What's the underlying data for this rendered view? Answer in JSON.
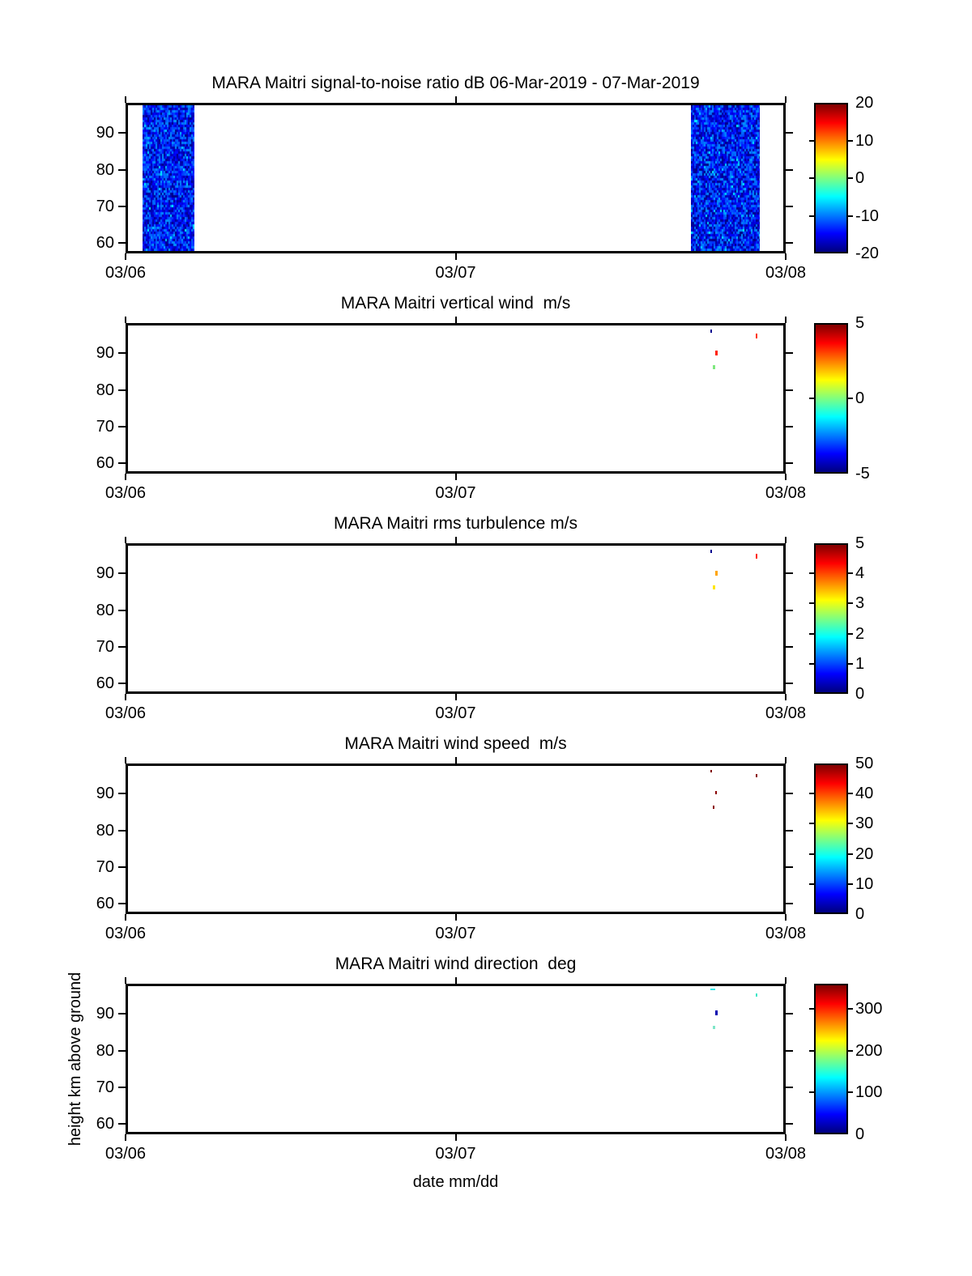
{
  "figure": {
    "background": "#ffffff",
    "text_color": "#000000",
    "colormap": "jet",
    "colormap_stops_bottom_to_top": [
      "#00007f",
      "#0000ff",
      "#00ffff",
      "#7fff7f",
      "#ffff00",
      "#ff0000",
      "#7f0000"
    ],
    "colormap_stop_fracs": [
      0,
      0.125,
      0.375,
      0.5,
      0.625,
      0.875,
      1
    ]
  },
  "axes": {
    "x_label": "date mm/dd",
    "y_label": "height km above ground",
    "x_tick_labels": [
      "03/06",
      "03/07",
      "03/08"
    ],
    "y_tick_labels": [
      "90",
      "80",
      "70",
      "60"
    ]
  },
  "chart_data": [
    {
      "type": "heatmap",
      "title": "MARA Maitri signal-to-noise ratio dB 06-Mar-2019 - 07-Mar-2019",
      "quantity": "signal-to-noise ratio",
      "units": "dB",
      "x_ticks": [
        "03/06",
        "03/07",
        "03/08"
      ],
      "y_ticks": [
        90,
        80,
        70,
        60
      ],
      "y_range_km": [
        57,
        98
      ],
      "colorbar": {
        "min": -20,
        "max": 20,
        "tick_values": [
          20,
          10,
          0,
          -10,
          -20
        ]
      },
      "noise_bands": [
        {
          "t0": 0.022,
          "t1": 0.101,
          "value_range_db": [
            -20,
            -8
          ],
          "desc": "blue noise block early 03/06"
        },
        {
          "t0": 0.859,
          "t1": 0.964,
          "value_range_db": [
            -20,
            -8
          ],
          "desc": "blue noise block late 03/07"
        }
      ],
      "specks": []
    },
    {
      "type": "heatmap",
      "title": "MARA Maitri vertical wind  m/s",
      "quantity": "vertical wind",
      "units": "m/s",
      "x_ticks": [
        "03/06",
        "03/07",
        "03/08"
      ],
      "y_ticks": [
        90,
        80,
        70,
        60
      ],
      "y_range_km": [
        57,
        98
      ],
      "colorbar": {
        "min": -5,
        "max": 5,
        "tick_values": [
          5,
          0,
          -5
        ]
      },
      "noise_bands": [],
      "specks": [
        {
          "x": 0.889,
          "y": 0.03,
          "w": 2,
          "h": 4,
          "color": "#00008f"
        },
        {
          "x": 0.958,
          "y": 0.058,
          "w": 2,
          "h": 6,
          "color": "#ff3300"
        },
        {
          "x": 0.896,
          "y": 0.17,
          "w": 3,
          "h": 6,
          "color": "#ff1f00"
        },
        {
          "x": 0.893,
          "y": 0.272,
          "w": 3,
          "h": 5,
          "color": "#7fe87f"
        }
      ]
    },
    {
      "type": "heatmap",
      "title": "MARA Maitri rms turbulence m/s",
      "quantity": "rms turbulence",
      "units": "m/s",
      "x_ticks": [
        "03/06",
        "03/07",
        "03/08"
      ],
      "y_ticks": [
        90,
        80,
        70,
        60
      ],
      "y_range_km": [
        57,
        98
      ],
      "colorbar": {
        "min": 0,
        "max": 5,
        "tick_values": [
          5,
          4,
          3,
          2,
          1,
          0
        ]
      },
      "noise_bands": [],
      "specks": [
        {
          "x": 0.889,
          "y": 0.03,
          "w": 2,
          "h": 4,
          "color": "#00008f"
        },
        {
          "x": 0.958,
          "y": 0.058,
          "w": 2,
          "h": 6,
          "color": "#ff2200"
        },
        {
          "x": 0.896,
          "y": 0.17,
          "w": 3,
          "h": 6,
          "color": "#ffa500"
        },
        {
          "x": 0.893,
          "y": 0.272,
          "w": 3,
          "h": 5,
          "color": "#ffe600"
        }
      ]
    },
    {
      "type": "heatmap",
      "title": "MARA Maitri wind speed  m/s",
      "quantity": "wind speed",
      "units": "m/s",
      "x_ticks": [
        "03/06",
        "03/07",
        "03/08"
      ],
      "y_ticks": [
        90,
        80,
        70,
        60
      ],
      "y_range_km": [
        57,
        98
      ],
      "colorbar": {
        "min": 0,
        "max": 50,
        "tick_values": [
          50,
          40,
          30,
          20,
          10,
          0
        ]
      },
      "noise_bands": [],
      "specks": [
        {
          "x": 0.889,
          "y": 0.03,
          "w": 2,
          "h": 3,
          "color": "#7f0000"
        },
        {
          "x": 0.958,
          "y": 0.058,
          "w": 2,
          "h": 4,
          "color": "#8b0000"
        },
        {
          "x": 0.896,
          "y": 0.17,
          "w": 2,
          "h": 4,
          "color": "#8b0000"
        },
        {
          "x": 0.893,
          "y": 0.272,
          "w": 2,
          "h": 4,
          "color": "#8b0000"
        }
      ]
    },
    {
      "type": "heatmap",
      "title": "MARA Maitri wind direction  deg",
      "quantity": "wind direction",
      "units": "deg",
      "x_ticks": [
        "03/06",
        "03/07",
        "03/08"
      ],
      "y_ticks": [
        90,
        80,
        70,
        60
      ],
      "y_range_km": [
        57,
        98
      ],
      "colorbar": {
        "min": 0,
        "max": 360,
        "tick_values": [
          300,
          200,
          100,
          0
        ]
      },
      "noise_bands": [],
      "specks": [
        {
          "x": 0.889,
          "y": 0.018,
          "w": 6,
          "h": 2,
          "color": "#33e6e6"
        },
        {
          "x": 0.958,
          "y": 0.052,
          "w": 2,
          "h": 4,
          "color": "#3fe6c8"
        },
        {
          "x": 0.896,
          "y": 0.167,
          "w": 3,
          "h": 6,
          "color": "#0000b0"
        },
        {
          "x": 0.893,
          "y": 0.27,
          "w": 3,
          "h": 4,
          "color": "#7fe6c8"
        }
      ]
    }
  ]
}
